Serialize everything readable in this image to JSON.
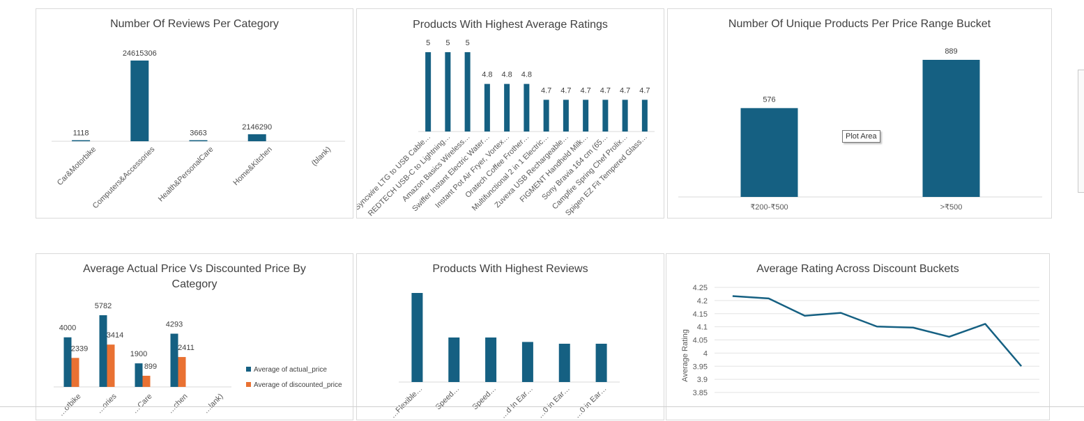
{
  "colors": {
    "blue": "#156082",
    "orange": "#e97132",
    "axis": "#d9d9d9",
    "text": "#404040"
  },
  "tooltip": "Plot Area",
  "chart_data": [
    {
      "id": "reviews_per_category",
      "type": "bar",
      "title": "Number Of Reviews Per Category",
      "categories": [
        "Car&Motorbike",
        "Computers&Accessories",
        "Health&PersonalCare",
        "Home&Kitchen",
        "(blank)"
      ],
      "values": [
        1118,
        24615306,
        3663,
        2146290,
        null
      ],
      "data_labels": [
        "1118",
        "24615306",
        "3663",
        "2146290",
        ""
      ]
    },
    {
      "id": "highest_avg_ratings",
      "type": "bar",
      "title": "Products With Highest Average Ratings",
      "categories": [
        "Syncwire LTG to USB Cable…",
        "REDTECH USB-C to Lightning…",
        "Amazon Basics Wireless…",
        "Swiffer Instant Electric Water…",
        "Instant Pot Air Fryer, Vortex…",
        "Oratech Coffee Frother…",
        "Multifunctional 2 in 1 Electric…",
        "Zuvexa USB Rechargeable…",
        "FIGMENT Handheld Milk…",
        "Sony Bravia 164 cm (65…",
        "Campfire Spring Chef Prolix…",
        "Spigen EZ Fit Tempered Glass…"
      ],
      "values": [
        5,
        5,
        5,
        4.8,
        4.8,
        4.8,
        4.7,
        4.7,
        4.7,
        4.7,
        4.7,
        4.7
      ],
      "data_labels": [
        "5",
        "5",
        "5",
        "4.8",
        "4.8",
        "4.8",
        "4.7",
        "4.7",
        "4.7",
        "4.7",
        "4.7",
        "4.7"
      ]
    },
    {
      "id": "unique_products_price_bucket",
      "type": "bar",
      "title": "Number Of Unique Products Per Price Range Bucket",
      "categories": [
        "₹200-₹500",
        ">₹500"
      ],
      "values": [
        576,
        889
      ],
      "data_labels": [
        "576",
        "889"
      ]
    },
    {
      "id": "actual_vs_discounted",
      "type": "bar",
      "title_lines": [
        "Average Actual Price Vs Discounted Price By",
        "Category"
      ],
      "categories": [
        "…otbike",
        "…ories",
        "…Care",
        "…chen",
        "…lank)"
      ],
      "series": [
        {
          "name": "Average of actual_price",
          "values": [
            4000,
            5782,
            1900,
            4293,
            null
          ],
          "labels": [
            "4000",
            "5782",
            "1900",
            "4293",
            ""
          ]
        },
        {
          "name": "Average of discounted_price",
          "values": [
            2339,
            3414,
            899,
            2411,
            null
          ],
          "labels": [
            "2339",
            "3414",
            "899",
            "2411",
            ""
          ]
        }
      ],
      "legend_position": "right"
    },
    {
      "id": "highest_reviews",
      "type": "bar",
      "title": "Products With Highest Reviews",
      "categories": [
        "…Flexible…",
        "Speed…",
        "Speed…",
        "…d In Ear…",
        "…0 in Ear…",
        "…0 in Ear…"
      ],
      "values": [
        100,
        50,
        50,
        45,
        43,
        43
      ]
    },
    {
      "id": "rating_discount_buckets",
      "type": "line",
      "title": "Average Rating Across Discount Buckets",
      "ylabel": "Average Rating",
      "ylim": [
        3.85,
        4.25
      ],
      "yticks": [
        "4.25",
        "4.2",
        "4.15",
        "4.1",
        "4.05",
        "4",
        "3.95",
        "3.9",
        "3.85"
      ],
      "values": [
        4.217,
        4.208,
        4.142,
        4.153,
        4.101,
        4.097,
        4.062,
        4.111,
        3.95
      ],
      "grid": true
    }
  ]
}
